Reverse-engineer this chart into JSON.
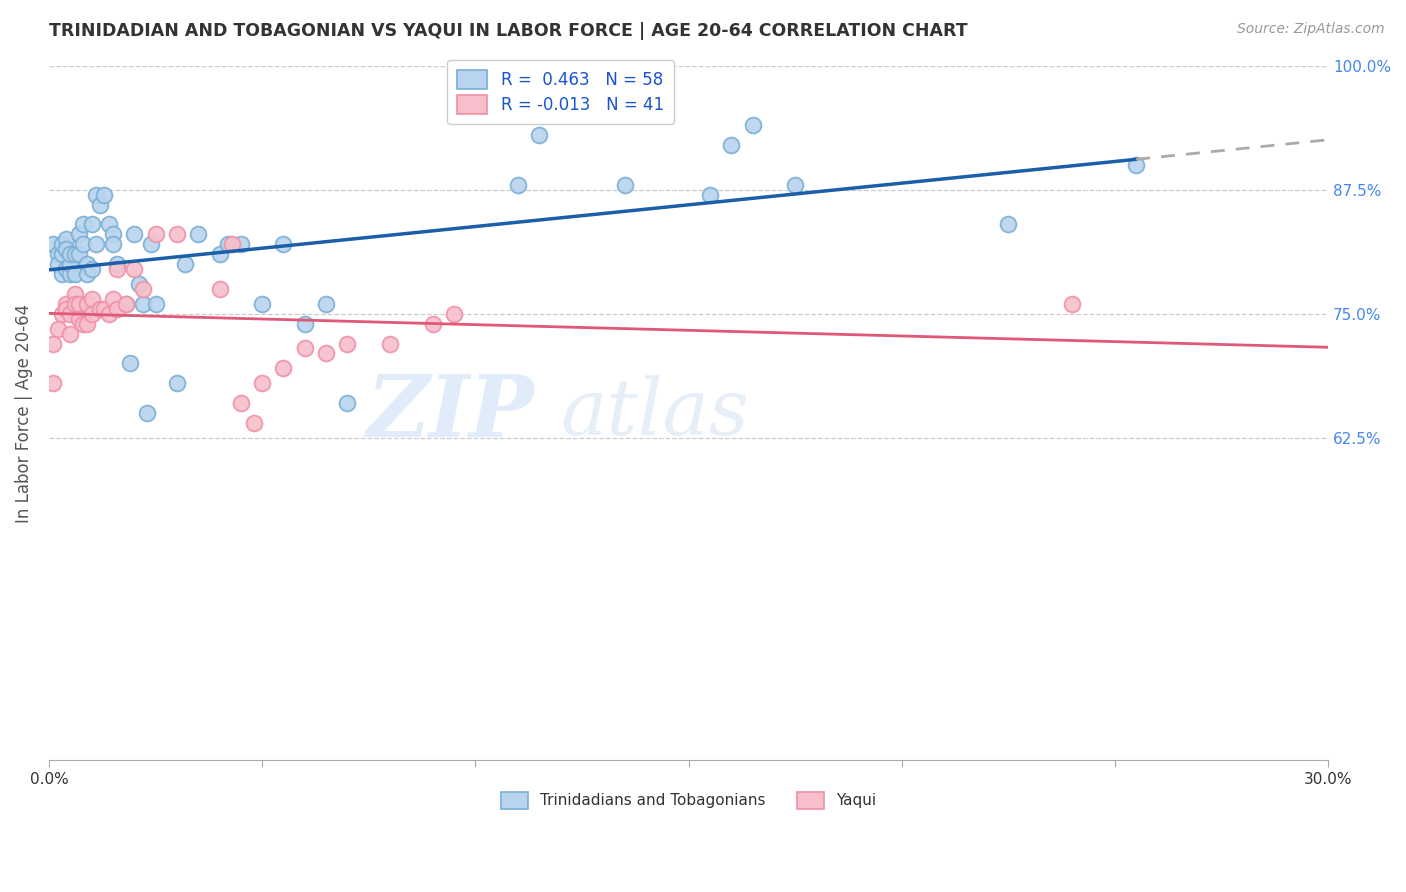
{
  "title": "TRINIDADIAN AND TOBAGONIAN VS YAQUI IN LABOR FORCE | AGE 20-64 CORRELATION CHART",
  "source": "Source: ZipAtlas.com",
  "ylabel": "In Labor Force | Age 20-64",
  "xlim": [
    0.0,
    0.3
  ],
  "ylim": [
    0.3,
    1.0
  ],
  "blue_circle_color": "#b8d4ee",
  "blue_edge_color": "#7aafd4",
  "pink_circle_color": "#f7bfcb",
  "pink_edge_color": "#f090a8",
  "blue_line_color": "#1a5fa8",
  "pink_line_color": "#e05878",
  "dashed_line_color": "#aaaaaa",
  "legend_blue_label_r": "R =  0.463",
  "legend_blue_label_n": "N = 58",
  "legend_pink_label_r": "R = -0.013",
  "legend_pink_label_n": "N = 41",
  "legend_bottom_blue": "Trinidadians and Tobagonians",
  "legend_bottom_pink": "Yaqui",
  "background_color": "#ffffff",
  "grid_color": "#cccccc",
  "blue_points_x": [
    0.001,
    0.002,
    0.002,
    0.003,
    0.003,
    0.003,
    0.004,
    0.004,
    0.004,
    0.005,
    0.005,
    0.005,
    0.006,
    0.006,
    0.007,
    0.007,
    0.008,
    0.008,
    0.009,
    0.009,
    0.01,
    0.01,
    0.011,
    0.011,
    0.012,
    0.013,
    0.014,
    0.015,
    0.015,
    0.016,
    0.018,
    0.019,
    0.02,
    0.021,
    0.022,
    0.023,
    0.024,
    0.025,
    0.03,
    0.032,
    0.035,
    0.04,
    0.042,
    0.045,
    0.05,
    0.055,
    0.06,
    0.065,
    0.07,
    0.11,
    0.115,
    0.135,
    0.155,
    0.16,
    0.165,
    0.175,
    0.225,
    0.255
  ],
  "blue_points_y": [
    0.82,
    0.81,
    0.8,
    0.79,
    0.81,
    0.82,
    0.825,
    0.815,
    0.795,
    0.79,
    0.8,
    0.81,
    0.81,
    0.79,
    0.83,
    0.81,
    0.82,
    0.84,
    0.8,
    0.79,
    0.795,
    0.84,
    0.82,
    0.87,
    0.86,
    0.87,
    0.84,
    0.83,
    0.82,
    0.8,
    0.76,
    0.7,
    0.83,
    0.78,
    0.76,
    0.65,
    0.82,
    0.76,
    0.68,
    0.8,
    0.83,
    0.81,
    0.82,
    0.82,
    0.76,
    0.82,
    0.74,
    0.76,
    0.66,
    0.88,
    0.93,
    0.88,
    0.87,
    0.92,
    0.94,
    0.88,
    0.84,
    0.9
  ],
  "pink_points_x": [
    0.001,
    0.001,
    0.002,
    0.003,
    0.004,
    0.004,
    0.005,
    0.005,
    0.006,
    0.006,
    0.007,
    0.007,
    0.008,
    0.009,
    0.009,
    0.01,
    0.01,
    0.012,
    0.013,
    0.014,
    0.015,
    0.016,
    0.016,
    0.018,
    0.02,
    0.022,
    0.025,
    0.03,
    0.04,
    0.043,
    0.045,
    0.048,
    0.05,
    0.055,
    0.06,
    0.065,
    0.07,
    0.08,
    0.09,
    0.095,
    0.24
  ],
  "pink_points_y": [
    0.72,
    0.68,
    0.735,
    0.75,
    0.76,
    0.755,
    0.75,
    0.73,
    0.77,
    0.76,
    0.76,
    0.745,
    0.74,
    0.76,
    0.74,
    0.765,
    0.75,
    0.755,
    0.755,
    0.75,
    0.765,
    0.795,
    0.755,
    0.76,
    0.795,
    0.775,
    0.83,
    0.83,
    0.775,
    0.82,
    0.66,
    0.64,
    0.68,
    0.695,
    0.715,
    0.71,
    0.72,
    0.72,
    0.74,
    0.75,
    0.76
  ]
}
